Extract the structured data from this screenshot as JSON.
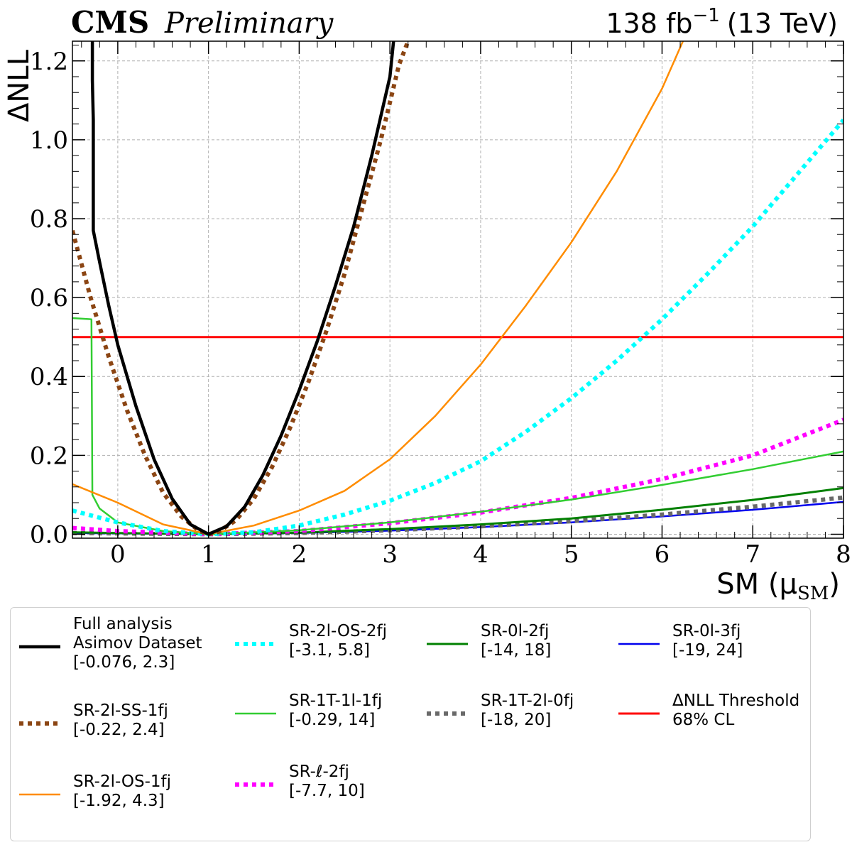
{
  "header": {
    "experiment": "CMS",
    "status": "Preliminary",
    "lumi": "138 fb",
    "lumi_exp": "−1",
    "energy": "(13 TeV)"
  },
  "chart_data": {
    "type": "line",
    "xlabel": "SM (μ",
    "xlabel_sub": "SM",
    "xlabel_close": ")",
    "ylabel": "ΔNLL",
    "xlim": [
      -0.5,
      8
    ],
    "ylim": [
      -0.01,
      1.25
    ],
    "xticks": [
      0,
      1,
      2,
      3,
      4,
      5,
      6,
      7,
      8
    ],
    "yticks": [
      0.0,
      0.2,
      0.4,
      0.6,
      0.8,
      1.0,
      1.2
    ],
    "ytick_labels": [
      "0.0",
      "0.2",
      "0.4",
      "0.6",
      "0.8",
      "1.0",
      "1.2"
    ],
    "grid": true,
    "legend_placement": "bottom, outside plot",
    "series": [
      {
        "name": "Full analysis Asimov Dataset",
        "interval": "[-0.076, 2.3]",
        "color": "#000000",
        "style": "solid",
        "width": 4.5,
        "points": [
          [
            -0.28,
            1.25
          ],
          [
            -0.28,
            1.15
          ],
          [
            -0.27,
            1.05
          ],
          [
            -0.27,
            0.77
          ],
          [
            -0.2,
            0.69
          ],
          [
            -0.1,
            0.58
          ],
          [
            0.0,
            0.48
          ],
          [
            0.2,
            0.325
          ],
          [
            0.4,
            0.19
          ],
          [
            0.6,
            0.09
          ],
          [
            0.8,
            0.025
          ],
          [
            1.0,
            0.0
          ],
          [
            1.2,
            0.02
          ],
          [
            1.4,
            0.07
          ],
          [
            1.6,
            0.15
          ],
          [
            1.8,
            0.25
          ],
          [
            2.0,
            0.365
          ],
          [
            2.2,
            0.49
          ],
          [
            2.4,
            0.63
          ],
          [
            2.6,
            0.78
          ],
          [
            2.8,
            0.96
          ],
          [
            3.0,
            1.16
          ],
          [
            3.04,
            1.25
          ]
        ]
      },
      {
        "name": "SR-2l-SS-1fj",
        "interval": "[-0.22, 2.4]",
        "color": "#8B4513",
        "style": "dotted",
        "width": 6,
        "points": [
          [
            -0.5,
            0.77
          ],
          [
            -0.3,
            0.6
          ],
          [
            -0.1,
            0.45
          ],
          [
            0.1,
            0.315
          ],
          [
            0.3,
            0.2
          ],
          [
            0.5,
            0.105
          ],
          [
            0.7,
            0.045
          ],
          [
            0.9,
            0.008
          ],
          [
            1.0,
            0.0
          ],
          [
            1.1,
            0.005
          ],
          [
            1.3,
            0.035
          ],
          [
            1.5,
            0.09
          ],
          [
            1.7,
            0.17
          ],
          [
            1.9,
            0.27
          ],
          [
            2.1,
            0.385
          ],
          [
            2.3,
            0.515
          ],
          [
            2.5,
            0.66
          ],
          [
            2.7,
            0.83
          ],
          [
            2.9,
            1.0
          ],
          [
            3.1,
            1.19
          ],
          [
            3.2,
            1.25
          ]
        ]
      },
      {
        "name": "SR-2l-OS-1fj",
        "interval": "[-1.92, 4.3]",
        "color": "#FF8C00",
        "style": "solid",
        "width": 2.5,
        "points": [
          [
            -0.5,
            0.127
          ],
          [
            0.0,
            0.08
          ],
          [
            0.5,
            0.025
          ],
          [
            1.0,
            0.0
          ],
          [
            1.5,
            0.022
          ],
          [
            2.0,
            0.06
          ],
          [
            2.5,
            0.11
          ],
          [
            3.0,
            0.19
          ],
          [
            3.5,
            0.3
          ],
          [
            4.0,
            0.43
          ],
          [
            4.5,
            0.58
          ],
          [
            5.0,
            0.74
          ],
          [
            5.5,
            0.92
          ],
          [
            6.0,
            1.13
          ],
          [
            6.23,
            1.25
          ]
        ]
      },
      {
        "name": "SR-2l-OS-2fj",
        "interval": "[-3.1, 5.8]",
        "color": "#00FFFF",
        "style": "dotted",
        "width": 6,
        "points": [
          [
            -0.5,
            0.06
          ],
          [
            0.0,
            0.03
          ],
          [
            0.5,
            0.008
          ],
          [
            1.0,
            0.0
          ],
          [
            1.5,
            0.005
          ],
          [
            2.0,
            0.022
          ],
          [
            2.5,
            0.05
          ],
          [
            3.0,
            0.085
          ],
          [
            3.5,
            0.13
          ],
          [
            4.0,
            0.185
          ],
          [
            4.5,
            0.26
          ],
          [
            5.0,
            0.345
          ],
          [
            5.5,
            0.44
          ],
          [
            6.0,
            0.545
          ],
          [
            6.5,
            0.66
          ],
          [
            7.0,
            0.78
          ],
          [
            7.5,
            0.915
          ],
          [
            8.0,
            1.05
          ]
        ]
      },
      {
        "name": "SR-1T-1l-1fj",
        "interval": "[-0.29, 14]",
        "color": "#32CD32",
        "style": "solid",
        "width": 2.5,
        "points": [
          [
            -0.5,
            0.548
          ],
          [
            -0.29,
            0.545
          ],
          [
            -0.28,
            0.1
          ],
          [
            -0.2,
            0.065
          ],
          [
            0.0,
            0.03
          ],
          [
            0.5,
            0.008
          ],
          [
            1.0,
            0.0
          ],
          [
            2.0,
            0.01
          ],
          [
            3.0,
            0.03
          ],
          [
            4.0,
            0.057
          ],
          [
            5.0,
            0.088
          ],
          [
            6.0,
            0.125
          ],
          [
            7.0,
            0.165
          ],
          [
            8.0,
            0.21
          ]
        ]
      },
      {
        "name": "SR-ℓ-2fj",
        "interval": "[-7.7, 10]",
        "color": "#FF00FF",
        "style": "dotted",
        "width": 6,
        "points": [
          [
            -0.5,
            0.016
          ],
          [
            0.0,
            0.008
          ],
          [
            1.0,
            0.0
          ],
          [
            2.0,
            0.008
          ],
          [
            3.0,
            0.028
          ],
          [
            4.0,
            0.055
          ],
          [
            5.0,
            0.092
          ],
          [
            6.0,
            0.14
          ],
          [
            7.0,
            0.2
          ],
          [
            8.0,
            0.29
          ]
        ]
      },
      {
        "name": "SR-0l-2fj",
        "interval": "[-14, 18]",
        "color": "#008000",
        "style": "solid",
        "width": 3,
        "points": [
          [
            -0.5,
            0.005
          ],
          [
            0.0,
            0.003
          ],
          [
            1.0,
            0.0
          ],
          [
            2.0,
            0.004
          ],
          [
            3.0,
            0.013
          ],
          [
            4.0,
            0.025
          ],
          [
            5.0,
            0.04
          ],
          [
            6.0,
            0.062
          ],
          [
            7.0,
            0.087
          ],
          [
            8.0,
            0.117
          ]
        ]
      },
      {
        "name": "SR-1T-2l-0fj",
        "interval": "[-18, 20]",
        "color": "#696969",
        "style": "dotted",
        "width": 6,
        "points": [
          [
            -0.5,
            0.003
          ],
          [
            0.0,
            0.002
          ],
          [
            1.0,
            0.0
          ],
          [
            2.0,
            0.003
          ],
          [
            3.0,
            0.01
          ],
          [
            4.0,
            0.02
          ],
          [
            5.0,
            0.033
          ],
          [
            6.0,
            0.05
          ],
          [
            7.0,
            0.07
          ],
          [
            8.0,
            0.093
          ]
        ]
      },
      {
        "name": "SR-0l-3fj",
        "interval": "[-19, 24]",
        "color": "#0000EE",
        "style": "solid",
        "width": 2.5,
        "points": [
          [
            -0.5,
            0.003
          ],
          [
            0.0,
            0.002
          ],
          [
            1.0,
            0.0
          ],
          [
            2.0,
            0.003
          ],
          [
            3.0,
            0.009
          ],
          [
            4.0,
            0.018
          ],
          [
            5.0,
            0.03
          ],
          [
            6.0,
            0.045
          ],
          [
            7.0,
            0.062
          ],
          [
            8.0,
            0.082
          ]
        ]
      },
      {
        "name": "ΔNLL Threshold 68% CL",
        "interval": "",
        "color": "#FF0000",
        "style": "solid",
        "width": 3,
        "points": [
          [
            -0.5,
            0.5
          ],
          [
            8.0,
            0.5
          ]
        ]
      }
    ]
  },
  "legend": [
    {
      "line1": "Full analysis",
      "line2": "Asimov Dataset",
      "line3": "[-0.076, 2.3]",
      "color": "#000000",
      "style": "solid",
      "width": 4.5
    },
    {
      "line1": "SR-2l-SS-1fj",
      "line2": "[-0.22, 2.4]",
      "line3": "",
      "color": "#8B4513",
      "style": "dotted",
      "width": 6
    },
    {
      "line1": "SR-2l-OS-1fj",
      "line2": "[-1.92, 4.3]",
      "line3": "",
      "color": "#FF8C00",
      "style": "solid",
      "width": 2.5
    },
    {
      "line1": "SR-2l-OS-2fj",
      "line2": "[-3.1, 5.8]",
      "line3": "",
      "color": "#00FFFF",
      "style": "dotted",
      "width": 6
    },
    {
      "line1": "SR-1T-1l-1fj",
      "line2": "[-0.29, 14]",
      "line3": "",
      "color": "#32CD32",
      "style": "solid",
      "width": 2.5
    },
    {
      "line1": "SR-ℓ-2fj",
      "line2": "[-7.7, 10]",
      "line3": "",
      "color": "#FF00FF",
      "style": "dotted",
      "width": 6
    },
    {
      "line1": "SR-0l-2fj",
      "line2": "[-14, 18]",
      "line3": "",
      "color": "#008000",
      "style": "solid",
      "width": 3
    },
    {
      "line1": "SR-1T-2l-0fj",
      "line2": "[-18, 20]",
      "line3": "",
      "color": "#696969",
      "style": "dotted",
      "width": 6
    },
    {
      "line1": "SR-0l-3fj",
      "line2": "[-19, 24]",
      "line3": "",
      "color": "#0000EE",
      "style": "solid",
      "width": 2.5
    },
    {
      "line1": "ΔNLL Threshold",
      "line2": "68% CL",
      "line3": "",
      "color": "#FF0000",
      "style": "solid",
      "width": 3
    }
  ]
}
